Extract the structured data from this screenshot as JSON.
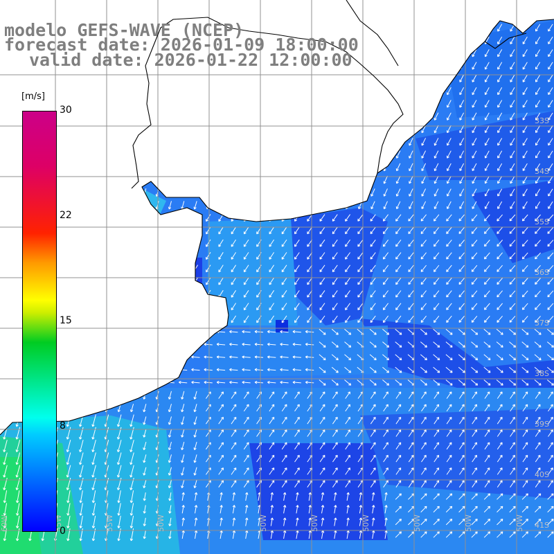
{
  "title": {
    "line1": "modelo GEFS-WAVE (NCEP)",
    "line2": "forecast date: 2026-01-09 18:00:00",
    "line3": "valid date: 2026-01-22 12:00:00"
  },
  "colorbar": {
    "unit": "[m/s]",
    "ticks": [
      "30",
      "22",
      "15",
      "8",
      "0"
    ],
    "colors": [
      "#0000ff",
      "#00ccff",
      "#00ffee",
      "#00cc22",
      "#ffff00",
      "#ff9900",
      "#ff2200",
      "#cc0088"
    ]
  },
  "grid": {
    "lat_labels": [
      "33S",
      "34S",
      "35S",
      "36S",
      "37S",
      "38S",
      "39S",
      "40S",
      "41S"
    ],
    "lon_labels": [
      "60W",
      "55W",
      "50W",
      "50W",
      "50W",
      "50W",
      "50W",
      "50W",
      "50W"
    ]
  },
  "colors": {
    "sea_blue": "#2a7cf4",
    "deep_blue": "#1b3ee6",
    "light_blue": "#2fa6f0",
    "green": "#1fd67a",
    "land": "#ffffff",
    "grid": "#909090",
    "coast": "#000000",
    "title_gray": "#7f7f7f"
  }
}
